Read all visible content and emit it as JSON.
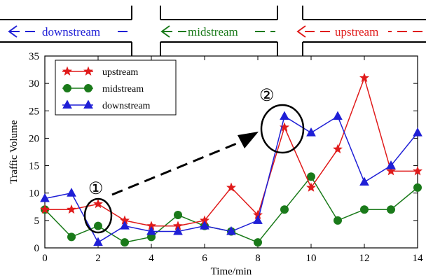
{
  "road": {
    "labels": [
      {
        "text": "downstream",
        "color": "#1f1fd6"
      },
      {
        "text": "midstream",
        "color": "#1a7a1a"
      },
      {
        "text": "upstream",
        "color": "#e01b1b"
      }
    ]
  },
  "annotations": {
    "marker_1": "①",
    "marker_2": "②"
  },
  "chart_data": {
    "type": "line",
    "title": "",
    "xlabel": "Time/min",
    "ylabel": "Traffic Volume",
    "xlim": [
      0,
      14
    ],
    "ylim": [
      0,
      35
    ],
    "xticks": [
      0,
      2,
      4,
      6,
      8,
      10,
      12,
      14
    ],
    "yticks": [
      0,
      5,
      10,
      15,
      20,
      25,
      30,
      35
    ],
    "grid": false,
    "legend_position": "top-left",
    "x": [
      0,
      1,
      2,
      3,
      4,
      5,
      6,
      7,
      8,
      9,
      10,
      11,
      12,
      13,
      14
    ],
    "series": [
      {
        "name": "upstream",
        "color": "#e01b1b",
        "marker": "star",
        "values": [
          7,
          7,
          8,
          5,
          4,
          4,
          5,
          11,
          6,
          22,
          11,
          18,
          31,
          14,
          14
        ]
      },
      {
        "name": "midstream",
        "color": "#1a7a1a",
        "marker": "circle",
        "values": [
          7,
          2,
          4,
          1,
          2,
          6,
          4,
          3,
          1,
          7,
          13,
          5,
          7,
          7,
          11
        ]
      },
      {
        "name": "downstream",
        "color": "#1f1fd6",
        "marker": "triangle",
        "values": [
          9,
          10,
          1,
          4,
          3,
          3,
          4,
          3,
          5,
          24,
          21,
          24,
          12,
          15,
          21
        ]
      }
    ]
  }
}
